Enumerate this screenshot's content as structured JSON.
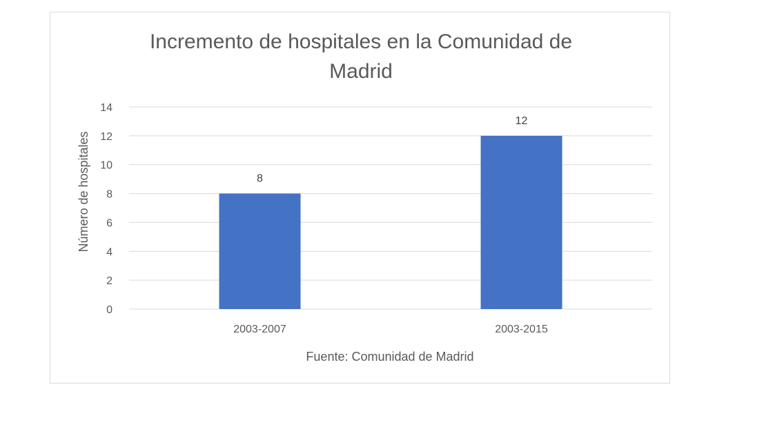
{
  "chart_data": {
    "type": "bar",
    "title_lines": [
      "Incremento de hospitales en la Comunidad de",
      "Madrid"
    ],
    "categories": [
      "2003-2007",
      "2003-2015"
    ],
    "values": [
      8,
      12
    ],
    "data_labels": [
      "8",
      "12"
    ],
    "xlabel": "Fuente: Comunidad de Madrid",
    "ylabel": "Número de hospitales",
    "ylim": [
      0,
      14
    ],
    "yticks": [
      0,
      2,
      4,
      6,
      8,
      10,
      12,
      14
    ],
    "ytick_labels": [
      "0",
      "2",
      "4",
      "6",
      "8",
      "10",
      "12",
      "14"
    ],
    "grid": true,
    "legend": "none",
    "colors": {
      "bar": "#4472c4",
      "grid": "#d9d9d9",
      "text": "#595959"
    }
  }
}
